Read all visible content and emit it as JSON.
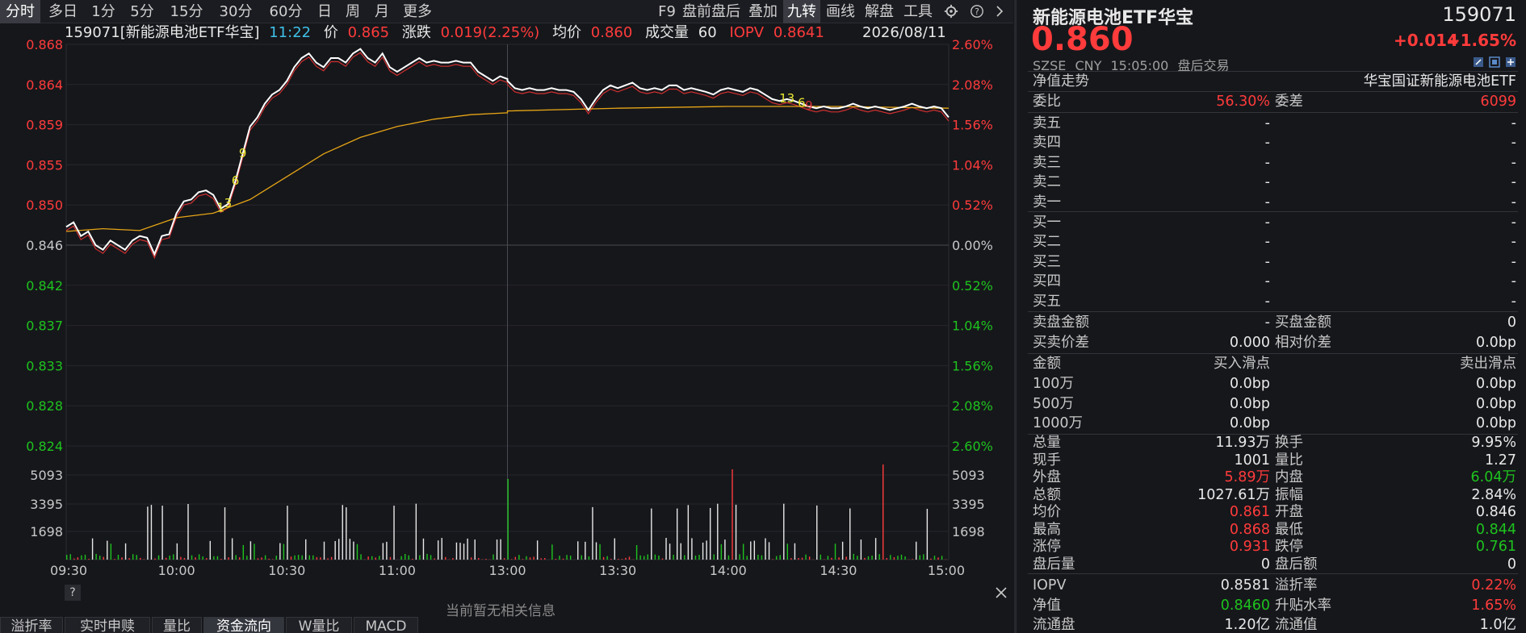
{
  "toolbar": {
    "left_tabs": [
      "分时",
      "多日",
      "1分",
      "5分",
      "15分",
      "30分",
      "60分",
      "日",
      "周",
      "月",
      "更多"
    ],
    "active_tab": "分时",
    "right_items": [
      "F9",
      "盘前盘后",
      "叠加",
      "九转",
      "画线",
      "解盘",
      "工具"
    ],
    "active_right": "九转",
    "icons": [
      "gear-icon",
      "help-icon",
      "chevron-right-icon"
    ]
  },
  "info": {
    "code_name": "159071[新能源电池ETF华宝]",
    "time": "11:22",
    "price_label": "价",
    "price": "0.865",
    "change_label": "涨跌",
    "change": "0.019(2.25%)",
    "avg_label": "均价",
    "avg": "0.860",
    "vol_label": "成交量",
    "vol": "60",
    "iopv_label": "IOPV",
    "iopv": "0.8641",
    "date": "2026/08/11"
  },
  "chart_data": {
    "type": "line",
    "series": [
      {
        "name": "价",
        "color": "#ffffff"
      },
      {
        "name": "均价",
        "color": "#e6a516"
      },
      {
        "name": "IOPV",
        "color": "#d03030"
      }
    ],
    "y_ticks_left": [
      "0.868",
      "0.864",
      "0.859",
      "0.855",
      "0.850",
      "0.846",
      "0.842",
      "0.837",
      "0.833",
      "0.828",
      "0.824"
    ],
    "y_ticks_right": [
      "2.60%",
      "2.08%",
      "1.56%",
      "1.04%",
      "0.52%",
      "0.00%",
      "0.52%",
      "1.04%",
      "1.56%",
      "2.08%",
      "2.60%"
    ],
    "vol_ticks_left": [
      "5093",
      "3395",
      "1698"
    ],
    "vol_ticks_right": [
      "5093",
      "3395",
      "1698"
    ],
    "x_ticks": [
      "09:30",
      "10:00",
      "10:30",
      "11:00",
      "13:00",
      "13:30",
      "14:00",
      "14:30",
      "15:00"
    ],
    "ylim": [
      0.824,
      0.868
    ],
    "price": [
      [
        "09:30",
        0.848
      ],
      [
        "09:32",
        0.8485
      ],
      [
        "09:34",
        0.847
      ],
      [
        "09:36",
        0.8475
      ],
      [
        "09:38",
        0.846
      ],
      [
        "09:40",
        0.8455
      ],
      [
        "09:42",
        0.8465
      ],
      [
        "09:44",
        0.846
      ],
      [
        "09:46",
        0.8455
      ],
      [
        "09:48",
        0.8465
      ],
      [
        "09:50",
        0.847
      ],
      [
        "09:52",
        0.8468
      ],
      [
        "09:54",
        0.845
      ],
      [
        "09:56",
        0.847
      ],
      [
        "09:58",
        0.8472
      ],
      [
        "10:00",
        0.8495
      ],
      [
        "10:02",
        0.8508
      ],
      [
        "10:04",
        0.851
      ],
      [
        "10:06",
        0.8518
      ],
      [
        "10:08",
        0.852
      ],
      [
        "10:10",
        0.8515
      ],
      [
        "10:12",
        0.85
      ],
      [
        "10:14",
        0.8505
      ],
      [
        "10:16",
        0.853
      ],
      [
        "10:18",
        0.856
      ],
      [
        "10:20",
        0.859
      ],
      [
        "10:22",
        0.86
      ],
      [
        "10:24",
        0.8615
      ],
      [
        "10:26",
        0.8625
      ],
      [
        "10:28",
        0.863
      ],
      [
        "10:30",
        0.864
      ],
      [
        "10:32",
        0.8655
      ],
      [
        "10:34",
        0.8665
      ],
      [
        "10:36",
        0.867
      ],
      [
        "10:38",
        0.866
      ],
      [
        "10:40",
        0.8655
      ],
      [
        "10:42",
        0.8665
      ],
      [
        "10:44",
        0.8665
      ],
      [
        "10:46",
        0.866
      ],
      [
        "10:48",
        0.867
      ],
      [
        "10:50",
        0.8675
      ],
      [
        "10:52",
        0.8665
      ],
      [
        "10:54",
        0.866
      ],
      [
        "10:56",
        0.867
      ],
      [
        "10:58",
        0.8655
      ],
      [
        "11:00",
        0.865
      ],
      [
        "11:02",
        0.8655
      ],
      [
        "11:04",
        0.866
      ],
      [
        "11:06",
        0.8665
      ],
      [
        "11:08",
        0.866
      ],
      [
        "11:10",
        0.8662
      ],
      [
        "11:12",
        0.866
      ],
      [
        "11:14",
        0.866
      ],
      [
        "11:16",
        0.8662
      ],
      [
        "11:18",
        0.866
      ],
      [
        "11:20",
        0.866
      ],
      [
        "11:22",
        0.865
      ],
      [
        "11:24",
        0.8645
      ],
      [
        "11:26",
        0.864
      ],
      [
        "11:28",
        0.8645
      ],
      [
        "11:30",
        0.8642
      ],
      [
        "13:00",
        0.864
      ],
      [
        "13:02",
        0.8632
      ],
      [
        "13:04",
        0.863
      ],
      [
        "13:06",
        0.8632
      ],
      [
        "13:08",
        0.863
      ],
      [
        "13:10",
        0.863
      ],
      [
        "13:12",
        0.8632
      ],
      [
        "13:14",
        0.863
      ],
      [
        "13:16",
        0.863
      ],
      [
        "13:18",
        0.8628
      ],
      [
        "13:20",
        0.862
      ],
      [
        "13:22",
        0.8608
      ],
      [
        "13:24",
        0.862
      ],
      [
        "13:26",
        0.863
      ],
      [
        "13:28",
        0.8635
      ],
      [
        "13:30",
        0.8632
      ],
      [
        "13:32",
        0.8635
      ],
      [
        "13:34",
        0.8638
      ],
      [
        "13:36",
        0.8632
      ],
      [
        "13:38",
        0.863
      ],
      [
        "13:40",
        0.8632
      ],
      [
        "13:42",
        0.863
      ],
      [
        "13:44",
        0.8635
      ],
      [
        "13:46",
        0.8635
      ],
      [
        "13:48",
        0.863
      ],
      [
        "13:50",
        0.8632
      ],
      [
        "13:52",
        0.863
      ],
      [
        "13:54",
        0.8628
      ],
      [
        "13:56",
        0.8625
      ],
      [
        "13:58",
        0.863
      ],
      [
        "14:00",
        0.8632
      ],
      [
        "14:02",
        0.863
      ],
      [
        "14:04",
        0.8628
      ],
      [
        "14:06",
        0.8632
      ],
      [
        "14:08",
        0.863
      ],
      [
        "14:10",
        0.8625
      ],
      [
        "14:12",
        0.862
      ],
      [
        "14:14",
        0.8618
      ],
      [
        "14:16",
        0.862
      ],
      [
        "14:18",
        0.8618
      ],
      [
        "14:20",
        0.8615
      ],
      [
        "14:22",
        0.8612
      ],
      [
        "14:24",
        0.861
      ],
      [
        "14:26",
        0.8612
      ],
      [
        "14:28",
        0.861
      ],
      [
        "14:30",
        0.861
      ],
      [
        "14:32",
        0.8612
      ],
      [
        "14:34",
        0.8615
      ],
      [
        "14:36",
        0.8612
      ],
      [
        "14:38",
        0.861
      ],
      [
        "14:40",
        0.8612
      ],
      [
        "14:42",
        0.861
      ],
      [
        "14:44",
        0.8608
      ],
      [
        "14:46",
        0.861
      ],
      [
        "14:48",
        0.8612
      ],
      [
        "14:50",
        0.8615
      ],
      [
        "14:52",
        0.8612
      ],
      [
        "14:54",
        0.861
      ],
      [
        "14:56",
        0.8612
      ],
      [
        "14:58",
        0.861
      ],
      [
        "15:00",
        0.86
      ]
    ],
    "avg_line": [
      [
        "09:30",
        0.8475
      ],
      [
        "09:40",
        0.8478
      ],
      [
        "09:50",
        0.8476
      ],
      [
        "10:00",
        0.849
      ],
      [
        "10:10",
        0.8495
      ],
      [
        "10:20",
        0.851
      ],
      [
        "10:30",
        0.8535
      ],
      [
        "10:40",
        0.856
      ],
      [
        "10:50",
        0.8578
      ],
      [
        "11:00",
        0.859
      ],
      [
        "11:10",
        0.8598
      ],
      [
        "11:20",
        0.8603
      ],
      [
        "11:30",
        0.8605
      ],
      [
        "13:00",
        0.8607
      ],
      [
        "13:30",
        0.861
      ],
      [
        "14:00",
        0.8612
      ],
      [
        "14:30",
        0.8612
      ],
      [
        "15:00",
        0.861
      ]
    ],
    "td_markers": [
      {
        "time": "10:12",
        "label": "1",
        "color": "#e8e830"
      },
      {
        "time": "10:14",
        "label": "3",
        "color": "#e8e830"
      },
      {
        "time": "10:16",
        "label": "6",
        "color": "#e8e830"
      },
      {
        "time": "10:18",
        "label": "9",
        "color": "#e8e830"
      },
      {
        "time": "14:16",
        "label": "13",
        "color": "#e8e830"
      },
      {
        "time": "14:20",
        "label": "6",
        "color": "#e8e830"
      },
      {
        "time": "14:22",
        "label": "9",
        "color": "#d03030"
      }
    ]
  },
  "bottom": {
    "no_info": "当前暂无相关信息",
    "tabs": [
      "溢折率",
      "实时申赎",
      "量比",
      "资金流向",
      "W量比",
      "MACD"
    ],
    "active_tab": "资金流向"
  },
  "panel": {
    "name": "新能源电池ETF华宝",
    "code": "159071",
    "price": "0.860",
    "change": "+0.014",
    "change_pct": "+1.65%",
    "exchange": "SZSE",
    "currency": "CNY",
    "time": "15:05:00",
    "session": "盘后交易",
    "nav_trend": "净值走势",
    "index_name": "华宝国证新能源电池ETF",
    "weibi_label": "委比",
    "weibi": "56.30%",
    "weicha_label": "委差",
    "weicha": "6099",
    "sell_rows": [
      {
        "label": "卖五",
        "price": "-",
        "vol": "-"
      },
      {
        "label": "卖四",
        "price": "-",
        "vol": "-"
      },
      {
        "label": "卖三",
        "price": "-",
        "vol": "-"
      },
      {
        "label": "卖二",
        "price": "-",
        "vol": "-"
      },
      {
        "label": "卖一",
        "price": "-",
        "vol": "-"
      }
    ],
    "buy_rows": [
      {
        "label": "买一",
        "price": "-",
        "vol": "-"
      },
      {
        "label": "买二",
        "price": "-",
        "vol": "-"
      },
      {
        "label": "买三",
        "price": "-",
        "vol": "-"
      },
      {
        "label": "买四",
        "price": "-",
        "vol": "-"
      },
      {
        "label": "买五",
        "price": "-",
        "vol": "-"
      }
    ],
    "sell_amount_label": "卖盘金额",
    "sell_amount": "-",
    "buy_amount_label": "买盘金额",
    "buy_amount": "0",
    "spread_label": "买卖价差",
    "spread": "0.000",
    "rel_spread_label": "相对价差",
    "rel_spread": "0.0bp",
    "slip_header": [
      "金额",
      "买入滑点",
      "卖出滑点"
    ],
    "slip_rows": [
      {
        "amount": "100万",
        "buy": "0.0bp",
        "sell": "0.0bp"
      },
      {
        "amount": "500万",
        "buy": "0.0bp",
        "sell": "0.0bp"
      },
      {
        "amount": "1000万",
        "buy": "0.0bp",
        "sell": "0.0bp"
      }
    ],
    "stats": [
      {
        "l1": "总量",
        "v1": "11.93万",
        "c1": "white",
        "l2": "换手",
        "v2": "9.95%",
        "c2": "white"
      },
      {
        "l1": "现手",
        "v1": "1001",
        "c1": "white",
        "l2": "量比",
        "v2": "1.27",
        "c2": "white"
      },
      {
        "l1": "外盘",
        "v1": "5.89万",
        "c1": "red",
        "l2": "内盘",
        "v2": "6.04万",
        "c2": "green"
      },
      {
        "l1": "总额",
        "v1": "1027.61万",
        "c1": "white",
        "l2": "振幅",
        "v2": "2.84%",
        "c2": "white"
      },
      {
        "l1": "均价",
        "v1": "0.861",
        "c1": "red",
        "l2": "开盘",
        "v2": "0.846",
        "c2": "white"
      },
      {
        "l1": "最高",
        "v1": "0.868",
        "c1": "red",
        "l2": "最低",
        "v2": "0.844",
        "c2": "green"
      },
      {
        "l1": "涨停",
        "v1": "0.931",
        "c1": "red",
        "l2": "跌停",
        "v2": "0.761",
        "c2": "green"
      },
      {
        "l1": "盘后量",
        "v1": "0",
        "c1": "white",
        "l2": "盘后额",
        "v2": "0",
        "c2": "white"
      }
    ],
    "extra": [
      {
        "l1": "IOPV",
        "v1": "0.8581",
        "c1": "white",
        "l2": "溢折率",
        "v2": "0.22%",
        "c2": "red"
      },
      {
        "l1": "净值",
        "v1": "0.8460",
        "c1": "green",
        "l2": "升贴水率",
        "v2": "1.65%",
        "c2": "red"
      },
      {
        "l1": "流通盘",
        "v1": "1.20亿",
        "c1": "white",
        "l2": "流通值",
        "v2": "1.0亿",
        "c2": "white"
      }
    ]
  },
  "colors": {
    "up": "#ff3b3b",
    "down": "#1ec31e",
    "price_line": "#ffffff",
    "avg_line": "#e6a516",
    "iopv_line": "#d03030",
    "cyan": "#3fc0e8"
  }
}
